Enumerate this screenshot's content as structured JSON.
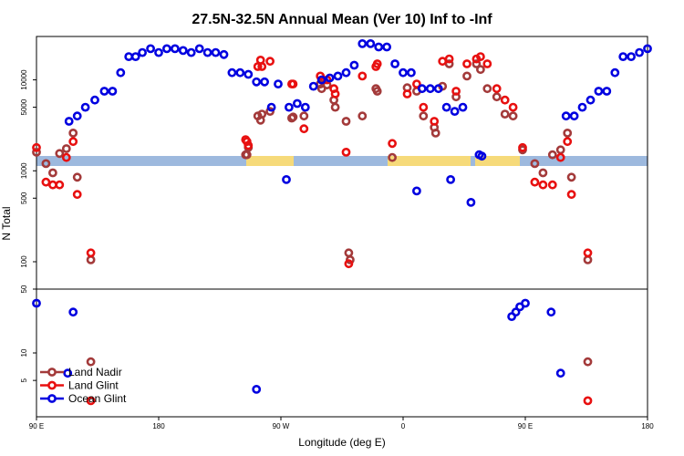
{
  "chart_data": {
    "type": "scatter",
    "title": "27.5N-32.5N Annual Mean (Ver 10)   Inf to -Inf",
    "xlabel": "Longitude (deg E)",
    "ylabel": "N Total",
    "x_ticks": [
      {
        "value": 90,
        "label": "90 E"
      },
      {
        "value": 180,
        "label": "180"
      },
      {
        "value": 270,
        "label": "90 W"
      },
      {
        "value": 360,
        "label": "0"
      },
      {
        "value": 450,
        "label": "90 E"
      },
      {
        "value": 540,
        "label": "180"
      }
    ],
    "xlim": [
      90,
      540
    ],
    "upper_panel": {
      "yscale": "log",
      "ylim": [
        50,
        30000
      ],
      "ticks": [
        100,
        500,
        1000,
        5000,
        10000
      ]
    },
    "lower_panel": {
      "yscale": "log",
      "ylim": [
        2,
        50
      ],
      "ticks": [
        5,
        10,
        50
      ]
    },
    "legend": {
      "position": "bottom-left",
      "entries": [
        "Land Nadir",
        "Land Glint",
        "Ocean Glint"
      ]
    },
    "series": [
      {
        "name": "Land Nadir",
        "color": "#a33a3a",
        "points": [
          [
            90,
            1600
          ],
          [
            97,
            1200
          ],
          [
            102,
            950
          ],
          [
            107,
            1550
          ],
          [
            112,
            1750
          ],
          [
            117,
            2600
          ],
          [
            120,
            850
          ],
          [
            130,
            105
          ],
          [
            244,
            1500
          ],
          [
            245,
            1500
          ],
          [
            246,
            1800
          ],
          [
            253,
            4000
          ],
          [
            255,
            3600
          ],
          [
            256,
            4200
          ],
          [
            262,
            4500
          ],
          [
            278,
            3800
          ],
          [
            279,
            3900
          ],
          [
            287,
            4000
          ],
          [
            299,
            9000
          ],
          [
            300,
            8000
          ],
          [
            304,
            8800
          ],
          [
            309,
            6000
          ],
          [
            310,
            5000
          ],
          [
            318,
            3500
          ],
          [
            320,
            125
          ],
          [
            321,
            105
          ],
          [
            330,
            4000
          ],
          [
            340,
            8000
          ],
          [
            341,
            7500
          ],
          [
            352,
            1400
          ],
          [
            363,
            8200
          ],
          [
            370,
            7500
          ],
          [
            375,
            4000
          ],
          [
            383,
            3000
          ],
          [
            384,
            2600
          ],
          [
            389,
            8500
          ],
          [
            394,
            15000
          ],
          [
            399,
            6500
          ],
          [
            407,
            11000
          ],
          [
            414,
            15000
          ],
          [
            417,
            13000
          ],
          [
            422,
            8000
          ],
          [
            429,
            6500
          ],
          [
            435,
            4200
          ],
          [
            441,
            4000
          ],
          [
            448,
            1700
          ],
          [
            457,
            1200
          ],
          [
            463,
            950
          ],
          [
            470,
            1500
          ],
          [
            476,
            1700
          ],
          [
            481,
            2600
          ],
          [
            484,
            850
          ],
          [
            496,
            105
          ]
        ],
        "lower_points": [
          [
            130,
            8
          ],
          [
            496,
            8
          ]
        ]
      },
      {
        "name": "Land Glint",
        "color": "#e81010",
        "points": [
          [
            90,
            1800
          ],
          [
            97,
            750
          ],
          [
            102,
            700
          ],
          [
            107,
            700
          ],
          [
            112,
            1400
          ],
          [
            117,
            2100
          ],
          [
            120,
            550
          ],
          [
            130,
            125
          ],
          [
            244,
            2200
          ],
          [
            245,
            2100
          ],
          [
            246,
            1900
          ],
          [
            253,
            14000
          ],
          [
            255,
            16500
          ],
          [
            256,
            14000
          ],
          [
            262,
            16000
          ],
          [
            278,
            9000
          ],
          [
            279,
            9000
          ],
          [
            287,
            2900
          ],
          [
            299,
            11000
          ],
          [
            300,
            10000
          ],
          [
            304,
            10000
          ],
          [
            309,
            8000
          ],
          [
            310,
            7000
          ],
          [
            318,
            1600
          ],
          [
            320,
            95
          ],
          [
            330,
            11000
          ],
          [
            340,
            14000
          ],
          [
            341,
            15000
          ],
          [
            352,
            2000
          ],
          [
            363,
            7000
          ],
          [
            370,
            9000
          ],
          [
            375,
            5000
          ],
          [
            383,
            3500
          ],
          [
            389,
            16000
          ],
          [
            394,
            17000
          ],
          [
            399,
            7500
          ],
          [
            407,
            15000
          ],
          [
            414,
            17000
          ],
          [
            417,
            18000
          ],
          [
            422,
            15000
          ],
          [
            429,
            8000
          ],
          [
            435,
            6000
          ],
          [
            441,
            5000
          ],
          [
            448,
            1800
          ],
          [
            457,
            750
          ],
          [
            463,
            700
          ],
          [
            470,
            700
          ],
          [
            476,
            1400
          ],
          [
            481,
            2100
          ],
          [
            484,
            550
          ],
          [
            496,
            125
          ]
        ],
        "lower_points": [
          [
            130,
            3
          ],
          [
            496,
            3
          ]
        ]
      },
      {
        "name": "Ocean Glint",
        "color": "#0000e0",
        "points": [
          [
            114,
            3500
          ],
          [
            120,
            4000
          ],
          [
            126,
            5000
          ],
          [
            133,
            6000
          ],
          [
            140,
            7500
          ],
          [
            146,
            7500
          ],
          [
            152,
            12000
          ],
          [
            158,
            18000
          ],
          [
            163,
            18000
          ],
          [
            168,
            20000
          ],
          [
            174,
            22000
          ],
          [
            180,
            20000
          ],
          [
            186,
            22000
          ],
          [
            192,
            22000
          ],
          [
            198,
            21000
          ],
          [
            204,
            20000
          ],
          [
            210,
            22000
          ],
          [
            216,
            20000
          ],
          [
            222,
            20000
          ],
          [
            228,
            19000
          ],
          [
            234,
            12000
          ],
          [
            240,
            12000
          ],
          [
            246,
            11500
          ],
          [
            252,
            9500
          ],
          [
            258,
            9500
          ],
          [
            263,
            5000
          ],
          [
            268,
            9000
          ],
          [
            274,
            800
          ],
          [
            276,
            5000
          ],
          [
            282,
            5500
          ],
          [
            288,
            5000
          ],
          [
            294,
            8500
          ],
          [
            300,
            10000
          ],
          [
            306,
            10500
          ],
          [
            312,
            11000
          ],
          [
            318,
            12000
          ],
          [
            324,
            14500
          ],
          [
            330,
            25000
          ],
          [
            336,
            25000
          ],
          [
            342,
            23000
          ],
          [
            348,
            23000
          ],
          [
            354,
            15000
          ],
          [
            360,
            12000
          ],
          [
            366,
            12000
          ],
          [
            370,
            600
          ],
          [
            374,
            8000
          ],
          [
            380,
            8000
          ],
          [
            386,
            8000
          ],
          [
            392,
            5000
          ],
          [
            395,
            800
          ],
          [
            398,
            4500
          ],
          [
            404,
            5000
          ],
          [
            410,
            450
          ],
          [
            416,
            1500
          ],
          [
            418,
            1450
          ],
          [
            480,
            4000
          ],
          [
            486,
            4000
          ],
          [
            492,
            5000
          ],
          [
            498,
            6000
          ],
          [
            504,
            7500
          ],
          [
            510,
            7500
          ],
          [
            516,
            12000
          ],
          [
            522,
            18000
          ],
          [
            528,
            18000
          ],
          [
            534,
            20000
          ],
          [
            540,
            22000
          ]
        ],
        "lower_points": [
          [
            90,
            35
          ],
          [
            117,
            28
          ],
          [
            113,
            6
          ],
          [
            252,
            4
          ],
          [
            440,
            25
          ],
          [
            443,
            28
          ],
          [
            446,
            32
          ],
          [
            450,
            35
          ],
          [
            469,
            28
          ],
          [
            476,
            6
          ]
        ]
      }
    ]
  }
}
